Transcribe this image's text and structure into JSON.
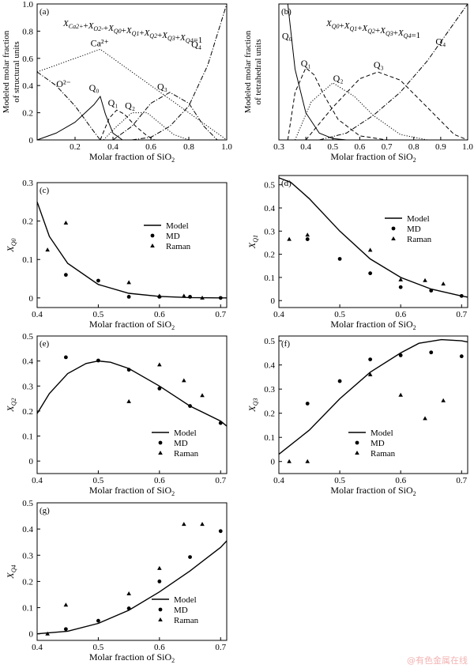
{
  "watermark": "@有色金属在线",
  "chart_data": [
    {
      "id": "a",
      "type": "line",
      "panel_label": "(a)",
      "equation": "X_Ca2+ + X_O2- + X_Q0 + X_Q1 + X_Q2 + X_Q3 + X_Q4 = 1",
      "xlabel": "Molar fraction of SiO2",
      "ylabel": [
        "Modeled molar fraction",
        "of structural units"
      ],
      "xlim": [
        0,
        1
      ],
      "ylim": [
        0,
        1
      ],
      "xticks": [
        "0.2",
        "0.4",
        "0.6",
        "0.8",
        "1.0"
      ],
      "yticks": [
        "0",
        "0.2",
        "0.4",
        "0.6",
        "0.8",
        "1.0"
      ],
      "series": [
        {
          "name": "Ca2+",
          "style": "dotted",
          "x": [
            0,
            0.333,
            1.0
          ],
          "y": [
            0.5,
            0.667,
            0.0
          ]
        },
        {
          "name": "O2-",
          "style": "dashdot",
          "x": [
            0,
            0.1,
            0.2,
            0.3,
            0.333
          ],
          "y": [
            0.5,
            0.4,
            0.25,
            0.06,
            0.0
          ]
        },
        {
          "name": "Q0",
          "style": "solid",
          "x": [
            0,
            0.1,
            0.2,
            0.3,
            0.333,
            0.36,
            0.4,
            0.45
          ],
          "y": [
            0.0,
            0.05,
            0.13,
            0.26,
            0.32,
            0.19,
            0.05,
            0.0
          ]
        },
        {
          "name": "Q1",
          "style": "dashed",
          "x": [
            0.333,
            0.38,
            0.42,
            0.46,
            0.52,
            0.58,
            0.62
          ],
          "y": [
            0.0,
            0.16,
            0.22,
            0.19,
            0.1,
            0.03,
            0.0
          ]
        },
        {
          "name": "Q2",
          "style": "dotted",
          "x": [
            0.35,
            0.42,
            0.5,
            0.58,
            0.65,
            0.72,
            0.8
          ],
          "y": [
            0.0,
            0.1,
            0.2,
            0.2,
            0.12,
            0.04,
            0.0
          ]
        },
        {
          "name": "Q3",
          "style": "dashdot",
          "x": [
            0.4,
            0.5,
            0.6,
            0.7,
            0.8,
            0.88,
            0.95
          ],
          "y": [
            0.0,
            0.1,
            0.27,
            0.35,
            0.27,
            0.1,
            0.0
          ]
        },
        {
          "name": "Q4",
          "style": "dashdot",
          "x": [
            0.5,
            0.6,
            0.7,
            0.8,
            0.9,
            1.0
          ],
          "y": [
            0.0,
            0.02,
            0.1,
            0.25,
            0.55,
            1.0
          ]
        }
      ],
      "curve_labels": [
        {
          "text": "Ca²⁺",
          "x": 0.33,
          "y": 0.69
        },
        {
          "text": "O²⁻",
          "x": 0.14,
          "y": 0.39
        },
        {
          "text": "Q₀",
          "x": 0.3,
          "y": 0.36
        },
        {
          "text": "Q₁",
          "x": 0.4,
          "y": 0.25
        },
        {
          "text": "Q₂",
          "x": 0.49,
          "y": 0.23
        },
        {
          "text": "Q₃",
          "x": 0.66,
          "y": 0.37
        },
        {
          "text": "Q₄",
          "x": 0.84,
          "y": 0.68
        }
      ]
    },
    {
      "id": "b",
      "type": "line",
      "panel_label": "(b)",
      "equation": "X_Q0 + X_Q1 + X_Q2 + X_Q3 + X_Q4 = 1",
      "xlabel": "Molar fraction of SiO2",
      "ylabel": [
        "Modeled molar fraction",
        "of tetrahedral units"
      ],
      "xlim": [
        0.3,
        1.0
      ],
      "ylim": [
        0,
        1
      ],
      "xticks": [
        "0.3",
        "0.4",
        "0.5",
        "0.6",
        "0.7",
        "0.8",
        "0.9",
        "1.0"
      ],
      "yticks": [],
      "series": [
        {
          "name": "Q0",
          "style": "solid",
          "x": [
            0.3,
            0.333,
            0.36,
            0.4,
            0.45,
            0.5,
            0.55
          ],
          "y": [
            1.0,
            1.0,
            0.52,
            0.2,
            0.05,
            0.01,
            0.0
          ]
        },
        {
          "name": "Q1",
          "style": "dashed",
          "x": [
            0.333,
            0.36,
            0.4,
            0.43,
            0.47,
            0.52,
            0.6,
            0.7
          ],
          "y": [
            0.0,
            0.35,
            0.53,
            0.48,
            0.32,
            0.15,
            0.03,
            0.0
          ]
        },
        {
          "name": "Q2",
          "style": "dotted",
          "x": [
            0.36,
            0.42,
            0.5,
            0.58,
            0.65,
            0.75,
            0.85
          ],
          "y": [
            0.0,
            0.28,
            0.42,
            0.32,
            0.18,
            0.04,
            0.0
          ]
        },
        {
          "name": "Q3",
          "style": "dashed",
          "x": [
            0.4,
            0.5,
            0.6,
            0.667,
            0.75,
            0.85,
            0.95,
            1.0
          ],
          "y": [
            0.0,
            0.24,
            0.45,
            0.5,
            0.44,
            0.24,
            0.04,
            0.0
          ]
        },
        {
          "name": "Q4",
          "style": "dashdot",
          "x": [
            0.45,
            0.55,
            0.65,
            0.75,
            0.85,
            0.95,
            1.0
          ],
          "y": [
            0.0,
            0.05,
            0.18,
            0.35,
            0.58,
            0.86,
            1.0
          ]
        }
      ],
      "curve_labels": [
        {
          "text": "Q₀",
          "x": 0.33,
          "y": 0.74
        },
        {
          "text": "Q₁",
          "x": 0.4,
          "y": 0.54
        },
        {
          "text": "Q₂",
          "x": 0.52,
          "y": 0.43
        },
        {
          "text": "Q₃",
          "x": 0.67,
          "y": 0.53
        },
        {
          "text": "Q₄",
          "x": 0.9,
          "y": 0.7
        }
      ]
    },
    {
      "id": "c",
      "type": "scatter",
      "panel_label": "(c)",
      "ylabel_sym": "X",
      "ylabel_sub": "Q0",
      "xlabel": "Molar fraction of SiO2",
      "xlim": [
        0.4,
        0.71
      ],
      "ylim": [
        -0.025,
        0.3
      ],
      "xticks": [
        "0.4",
        "0.5",
        "0.6",
        "0.7"
      ],
      "yticks": [
        "0",
        "0.1",
        "0.2",
        "0.3"
      ],
      "legend": [
        "Model",
        "MD",
        "Raman"
      ],
      "legend_pos": "top-right",
      "model": {
        "x": [
          0.4,
          0.42,
          0.45,
          0.5,
          0.55,
          0.6,
          0.65,
          0.7,
          0.71
        ],
        "y": [
          0.25,
          0.16,
          0.09,
          0.035,
          0.012,
          0.004,
          0.001,
          0.0,
          0.0
        ]
      },
      "md": {
        "x": [
          0.447,
          0.5,
          0.55,
          0.6,
          0.65,
          0.7
        ],
        "y": [
          0.06,
          0.045,
          0.003,
          0.003,
          0.003,
          0.0
        ]
      },
      "raman": {
        "x": [
          0.417,
          0.447,
          0.55,
          0.6,
          0.64,
          0.67
        ],
        "y": [
          0.125,
          0.195,
          0.04,
          0.005,
          0.005,
          0.0
        ]
      }
    },
    {
      "id": "d",
      "type": "scatter",
      "panel_label": "(d)",
      "ylabel_sym": "X",
      "ylabel_sub": "Q1",
      "xlabel": "Molar fraction of SiO2",
      "xlim": [
        0.4,
        0.71
      ],
      "ylim": [
        -0.03,
        0.54
      ],
      "xticks": [
        "0.4",
        "0.5",
        "0.6",
        "0.7"
      ],
      "yticks": [
        "0",
        "0.1",
        "0.2",
        "0.3",
        "0.4",
        "0.5"
      ],
      "legend": [
        "Model",
        "MD",
        "Raman"
      ],
      "legend_pos": "top-right",
      "model": {
        "x": [
          0.4,
          0.42,
          0.45,
          0.5,
          0.55,
          0.6,
          0.65,
          0.7,
          0.71
        ],
        "y": [
          0.53,
          0.51,
          0.44,
          0.3,
          0.18,
          0.1,
          0.05,
          0.02,
          0.015
        ]
      },
      "md": {
        "x": [
          0.447,
          0.5,
          0.55,
          0.6,
          0.65,
          0.7
        ],
        "y": [
          0.265,
          0.18,
          0.118,
          0.058,
          0.043,
          0.02
        ]
      },
      "raman": {
        "x": [
          0.417,
          0.447,
          0.55,
          0.6,
          0.64,
          0.67
        ],
        "y": [
          0.265,
          0.283,
          0.218,
          0.09,
          0.087,
          0.072
        ]
      }
    },
    {
      "id": "e",
      "type": "scatter",
      "panel_label": "(e)",
      "ylabel_sym": "X",
      "ylabel_sub": "Q2",
      "xlabel": "Molar fraction of SiO2",
      "xlim": [
        0.4,
        0.71
      ],
      "ylim": [
        -0.05,
        0.5
      ],
      "xticks": [
        "0.4",
        "0.5",
        "0.6",
        "0.7"
      ],
      "yticks": [
        "0",
        "0.1",
        "0.2",
        "0.3",
        "0.4",
        "0.5"
      ],
      "legend": [
        "Model",
        "MD",
        "Raman"
      ],
      "legend_pos": "bottom-right",
      "model": {
        "x": [
          0.4,
          0.42,
          0.45,
          0.48,
          0.5,
          0.52,
          0.55,
          0.6,
          0.65,
          0.7,
          0.71
        ],
        "y": [
          0.19,
          0.27,
          0.35,
          0.39,
          0.4,
          0.395,
          0.37,
          0.3,
          0.22,
          0.16,
          0.14
        ]
      },
      "md": {
        "x": [
          0.447,
          0.5,
          0.55,
          0.6,
          0.65,
          0.7
        ],
        "y": [
          0.415,
          0.402,
          0.365,
          0.29,
          0.22,
          0.152
        ]
      },
      "raman": {
        "x": [
          0.55,
          0.6,
          0.64,
          0.67
        ],
        "y": [
          0.238,
          0.385,
          0.322,
          0.262
        ]
      }
    },
    {
      "id": "f",
      "type": "scatter",
      "panel_label": "(f)",
      "ylabel_sym": "X",
      "ylabel_sub": "Q3",
      "xlabel": "Molar fraction of SiO2",
      "xlim": [
        0.4,
        0.71
      ],
      "ylim": [
        -0.05,
        0.52
      ],
      "xticks": [
        "0.4",
        "0.5",
        "0.6",
        "0.7"
      ],
      "yticks": [
        "0",
        "0.1",
        "0.2",
        "0.3",
        "0.4",
        "0.5"
      ],
      "legend": [
        "Model",
        "MD",
        "Raman"
      ],
      "legend_pos": "bottom-left",
      "model": {
        "x": [
          0.4,
          0.45,
          0.5,
          0.55,
          0.6,
          0.63,
          0.667,
          0.7,
          0.71
        ],
        "y": [
          0.03,
          0.13,
          0.26,
          0.37,
          0.45,
          0.49,
          0.505,
          0.5,
          0.495
        ]
      },
      "md": {
        "x": [
          0.447,
          0.5,
          0.55,
          0.6,
          0.65,
          0.7
        ],
        "y": [
          0.24,
          0.333,
          0.423,
          0.44,
          0.452,
          0.436
        ]
      },
      "raman": {
        "x": [
          0.417,
          0.447,
          0.55,
          0.6,
          0.64,
          0.67
        ],
        "y": [
          0.0,
          0.0,
          0.36,
          0.275,
          0.178,
          0.252
        ]
      }
    },
    {
      "id": "g",
      "type": "scatter",
      "panel_label": "(g)",
      "ylabel_sym": "X",
      "ylabel_sub": "Q4",
      "xlabel": "Molar fraction of SiO2",
      "xlim": [
        0.4,
        0.71
      ],
      "ylim": [
        -0.025,
        0.5
      ],
      "xticks": [
        "0.4",
        "0.5",
        "0.6",
        "0.7"
      ],
      "yticks": [
        "0",
        "0.1",
        "0.2",
        "0.3",
        "0.4",
        "0.5"
      ],
      "legend": [
        "Model",
        "MD",
        "Raman"
      ],
      "legend_pos": "bottom-right",
      "model": {
        "x": [
          0.4,
          0.45,
          0.5,
          0.55,
          0.6,
          0.65,
          0.7,
          0.71
        ],
        "y": [
          0.0,
          0.01,
          0.04,
          0.09,
          0.16,
          0.24,
          0.33,
          0.355
        ]
      },
      "md": {
        "x": [
          0.447,
          0.5,
          0.55,
          0.6,
          0.65,
          0.7
        ],
        "y": [
          0.018,
          0.05,
          0.097,
          0.2,
          0.293,
          0.392
        ]
      },
      "raman": {
        "x": [
          0.417,
          0.447,
          0.55,
          0.6,
          0.64,
          0.67
        ],
        "y": [
          0.0,
          0.11,
          0.153,
          0.25,
          0.418,
          0.418
        ]
      }
    }
  ]
}
